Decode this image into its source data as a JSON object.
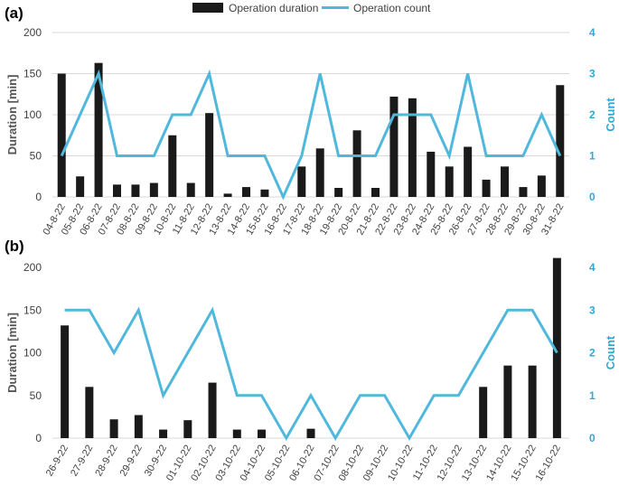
{
  "legend": {
    "bar_label": "Operation duration",
    "line_label": "Operation count"
  },
  "colors": {
    "bar": "#1a1a1a",
    "line": "#4fb8dc",
    "grid": "#d9d9d9",
    "right_axis": "#2fa8d3"
  },
  "chart_data": [
    {
      "type": "bar+line",
      "panel_label": "(a)",
      "ylabel": "Duration [min]",
      "y2label": "Count",
      "ylim": [
        0,
        200
      ],
      "yticks": [
        0,
        50,
        100,
        150,
        200
      ],
      "y2lim": [
        0,
        4
      ],
      "y2ticks": [
        0,
        1,
        2,
        3,
        4
      ],
      "grid": true,
      "legend_position": "top-center",
      "categories": [
        "04-8-22",
        "05-8-22",
        "06-8-22",
        "07-8-22",
        "08-8-22",
        "09-8-22",
        "10-8-22",
        "11-8-22",
        "12-8-22",
        "13-8-22",
        "14-8-22",
        "15-8-22",
        "16-8-22",
        "17-8-22",
        "18-8-22",
        "19-8-22",
        "20-8-22",
        "21-8-22",
        "22-8-22",
        "23-8-22",
        "24-8-22",
        "25-8-22",
        "26-8-22",
        "27-8-22",
        "28-8-22",
        "29-8-22",
        "30-8-22",
        "31-8-22"
      ],
      "series": [
        {
          "name": "Operation duration",
          "kind": "bar",
          "axis": "left",
          "values": [
            150,
            25,
            163,
            15,
            15,
            17,
            75,
            17,
            102,
            4,
            12,
            9,
            0,
            37,
            59,
            11,
            81,
            11,
            122,
            120,
            55,
            37,
            61,
            21,
            37,
            12,
            26,
            136
          ]
        },
        {
          "name": "Operation count",
          "kind": "line",
          "axis": "right",
          "values": [
            1,
            2,
            3,
            1,
            1,
            1,
            2,
            2,
            3,
            1,
            1,
            1,
            0,
            1,
            3,
            1,
            1,
            1,
            2,
            2,
            2,
            1,
            3,
            1,
            1,
            1,
            2,
            1
          ]
        }
      ]
    },
    {
      "type": "bar+line",
      "panel_label": "(b)",
      "ylabel": "Duration [min]",
      "y2label": "Count",
      "ylim": [
        0,
        200
      ],
      "yticks": [
        0,
        50,
        100,
        150,
        200
      ],
      "y2lim": [
        0,
        4
      ],
      "y2ticks": [
        0,
        1,
        2,
        3,
        4
      ],
      "grid": false,
      "categories": [
        "26-9-22",
        "27-9-22",
        "28-9-22",
        "29-9-22",
        "30-9-22",
        "01-10-22",
        "02-10-22",
        "03-10-22",
        "04-10-22",
        "05-10-22",
        "06-10-22",
        "07-10-22",
        "08-10-22",
        "09-10-22",
        "10-10-22",
        "11-10-22",
        "12-10-22",
        "13-10-22",
        "14-10-22",
        "15-10-22",
        "16-10-22"
      ],
      "series": [
        {
          "name": "Operation duration",
          "kind": "bar",
          "axis": "left",
          "values": [
            132,
            60,
            22,
            27,
            10,
            21,
            65,
            10,
            10,
            0,
            11,
            0,
            0,
            0,
            0,
            0,
            0,
            60,
            85,
            85,
            211
          ]
        },
        {
          "name": "Operation count",
          "kind": "line",
          "axis": "right",
          "values": [
            3,
            3,
            2,
            3,
            1,
            2,
            3,
            1,
            1,
            0,
            1,
            0,
            1,
            1,
            0,
            1,
            1,
            2,
            3,
            3,
            2
          ]
        }
      ]
    }
  ]
}
